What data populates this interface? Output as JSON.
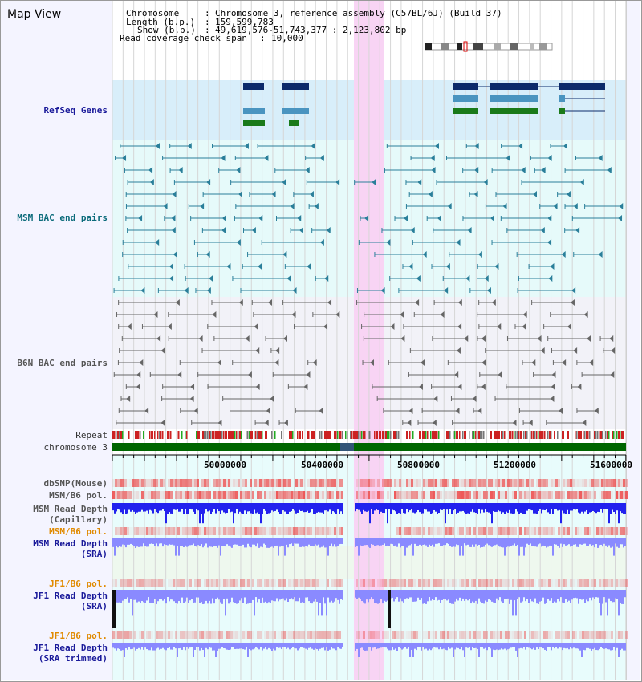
{
  "page": {
    "title": "Map View"
  },
  "header": {
    "chromosome_label": "Chromosome",
    "chromosome_value": "Chromosome 3, reference assembly (C57BL/6J) (Build 37)",
    "length_label": "Length (b.p.)",
    "length_value": "159,599,783",
    "show_label": "Show (b.p.)",
    "show_value": "49,619,576-51,743,377 : 2,123,802 bp",
    "coverage_label": "Read coverage check span",
    "coverage_value": "10,000"
  },
  "tracks": {
    "refseq": "RefSeq Genes",
    "msm_bac": "MSM BAC end pairs",
    "b6n_bac": "B6N BAC end pairs",
    "repeat": "Repeat",
    "chromosome": "chromosome 3",
    "dbsnp": "dbSNP(Mouse)",
    "msm_b6_pol_1": "MSM/B6 pol.",
    "msm_read_depth_cap_1": "MSM Read Depth",
    "msm_read_depth_cap_2": "(Capillary)",
    "msm_b6_pol_2": "MSM/B6 pol.",
    "msm_read_depth_sra_1": "MSM Read Depth",
    "msm_read_depth_sra_2": "(SRA)",
    "jf1_b6_pol_1": "JF1/B6 pol.",
    "jf1_read_depth_sra_1": "JF1 Read Depth",
    "jf1_read_depth_sra_2": "(SRA)",
    "jf1_b6_pol_2": "JF1/B6 pol.",
    "jf1_read_depth_trim_1": "JF1 Read Depth",
    "jf1_read_depth_trim_2": "(SRA trimmed)"
  },
  "axis": {
    "ticks": [
      "50000000",
      "50400000",
      "50800000",
      "51200000",
      "51600000"
    ]
  },
  "colors": {
    "highlight": "#f8d4f4",
    "refseq_bg": "#d8eefa",
    "msm_bg": "#e6fafa",
    "b6n_bg": "#f2f2f8",
    "gene_navy": "#0c2a6a",
    "gene_blue": "#4a94c0",
    "gene_green": "#1a7a1a",
    "msm_pair": "#2a7f9a",
    "b6n_pair": "#666666",
    "depth_blue": "#2222ee",
    "depth_light": "#8a8aff",
    "pol_red": "#ee4444",
    "chrom_green": "#006600"
  }
}
